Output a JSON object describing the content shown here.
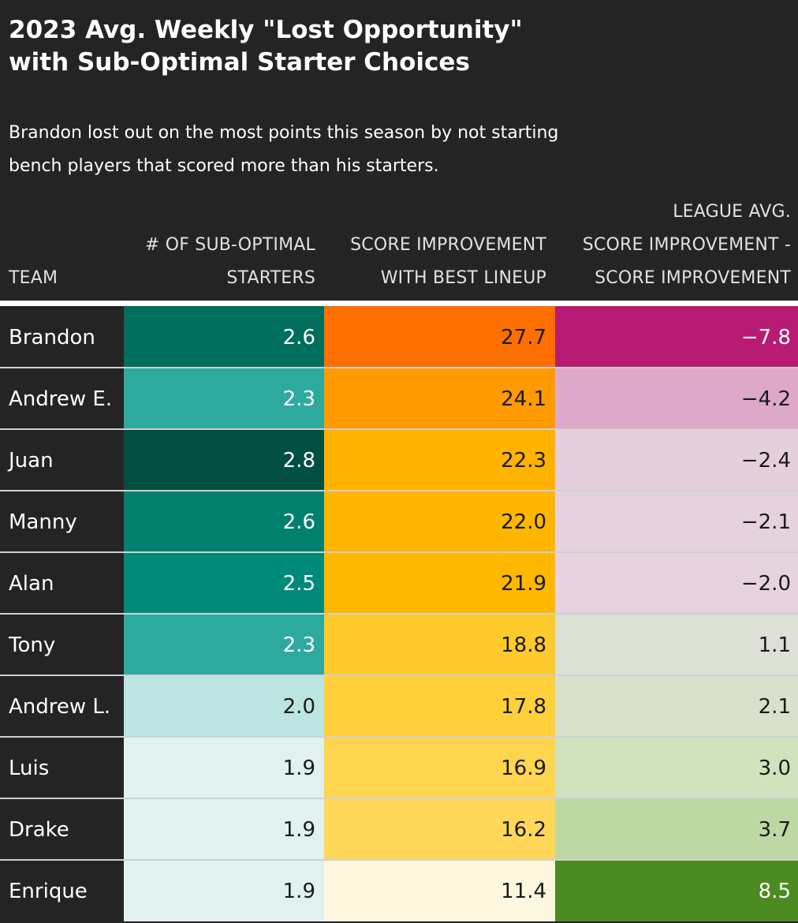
{
  "title_lines": [
    "2023 Avg. Weekly \"Lost Opportunity\"",
    "with Sub-Optimal Starter Choices"
  ],
  "subtitle_lines": [
    "Brandon lost out on the most points this season by not starting",
    "bench players that scored more than his starters."
  ],
  "columns": {
    "team": [
      "TEAM"
    ],
    "suboptimal": [
      "# OF SUB-OPTIMAL",
      "STARTERS"
    ],
    "improvement": [
      "SCORE IMPROVEMENT",
      "WITH BEST LINEUP"
    ],
    "league": [
      "LEAGUE AVG.",
      "SCORE IMPROVEMENT -",
      "SCORE IMPROVEMENT"
    ]
  },
  "colors": {
    "background": "#242424",
    "separator": "#ffffff",
    "dark_text": "#1a1a1a",
    "light_text": "#ffffff"
  },
  "chart_data": {
    "type": "table",
    "title": "2023 Avg. Weekly \"Lost Opportunity\" with Sub-Optimal Starter Choices",
    "subtitle": "Brandon lost out on the most points this season by not starting bench players that scored more than his starters.",
    "columns": [
      "TEAM",
      "# OF SUB-OPTIMAL STARTERS",
      "SCORE IMPROVEMENT WITH BEST LINEUP",
      "LEAGUE AVG. SCORE IMPROVEMENT - SCORE IMPROVEMENT"
    ],
    "rows": [
      {
        "team": "Brandon",
        "suboptimal": "2.6",
        "improvement": "27.7",
        "league": "−7.8",
        "colors": {
          "suboptimal": "#006e5c",
          "improvement": "#ff6f00",
          "league": "#b81b73"
        },
        "light": {
          "suboptimal": true,
          "improvement": false,
          "league": true
        }
      },
      {
        "team": "Andrew E.",
        "suboptimal": "2.3",
        "improvement": "24.1",
        "league": "−4.2",
        "colors": {
          "suboptimal": "#2daa9e",
          "improvement": "#ff9a00",
          "league": "#dea9c9"
        },
        "light": {
          "suboptimal": true,
          "improvement": false,
          "league": false
        }
      },
      {
        "team": "Juan",
        "suboptimal": "2.8",
        "improvement": "22.3",
        "league": "−2.4",
        "colors": {
          "suboptimal": "#004f40",
          "improvement": "#ffb200",
          "league": "#e6cfdd"
        },
        "light": {
          "suboptimal": true,
          "improvement": false,
          "league": false
        }
      },
      {
        "team": "Manny",
        "suboptimal": "2.6",
        "improvement": "22.0",
        "league": "−2.1",
        "colors": {
          "suboptimal": "#00806d",
          "improvement": "#ffb600",
          "league": "#e6d2df"
        },
        "light": {
          "suboptimal": true,
          "improvement": false,
          "league": false
        }
      },
      {
        "team": "Alan",
        "suboptimal": "2.5",
        "improvement": "21.9",
        "league": "−2.0",
        "colors": {
          "suboptimal": "#008a78",
          "improvement": "#ffb700",
          "league": "#e7d3e0"
        },
        "light": {
          "suboptimal": true,
          "improvement": false,
          "league": false
        }
      },
      {
        "team": "Tony",
        "suboptimal": "2.3",
        "improvement": "18.8",
        "league": "1.1",
        "colors": {
          "suboptimal": "#2daa9e",
          "improvement": "#ffca2c",
          "league": "#dde0d5"
        },
        "light": {
          "suboptimal": true,
          "improvement": false,
          "league": false
        }
      },
      {
        "team": "Andrew L.",
        "suboptimal": "2.0",
        "improvement": "17.8",
        "league": "2.1",
        "colors": {
          "suboptimal": "#bce4e1",
          "improvement": "#ffd03a",
          "league": "#d9e1cc"
        },
        "light": {
          "suboptimal": false,
          "improvement": false,
          "league": false
        }
      },
      {
        "team": "Luis",
        "suboptimal": "1.9",
        "improvement": "16.9",
        "league": "3.0",
        "colors": {
          "suboptimal": "#e0f1f0",
          "improvement": "#ffd54f",
          "league": "#d1e2bf"
        },
        "light": {
          "suboptimal": false,
          "improvement": false,
          "league": false
        }
      },
      {
        "team": "Drake",
        "suboptimal": "1.9",
        "improvement": "16.2",
        "league": "3.7",
        "colors": {
          "suboptimal": "#e0f1f0",
          "improvement": "#ffd85a",
          "league": "#bdd8a3"
        },
        "light": {
          "suboptimal": false,
          "improvement": false,
          "league": false
        }
      },
      {
        "team": "Enrique",
        "suboptimal": "1.9",
        "improvement": "11.4",
        "league": "8.5",
        "colors": {
          "suboptimal": "#e0f1f0",
          "improvement": "#fdf7e0",
          "league": "#4c8a22"
        },
        "light": {
          "suboptimal": false,
          "improvement": false,
          "league": true
        }
      }
    ]
  }
}
